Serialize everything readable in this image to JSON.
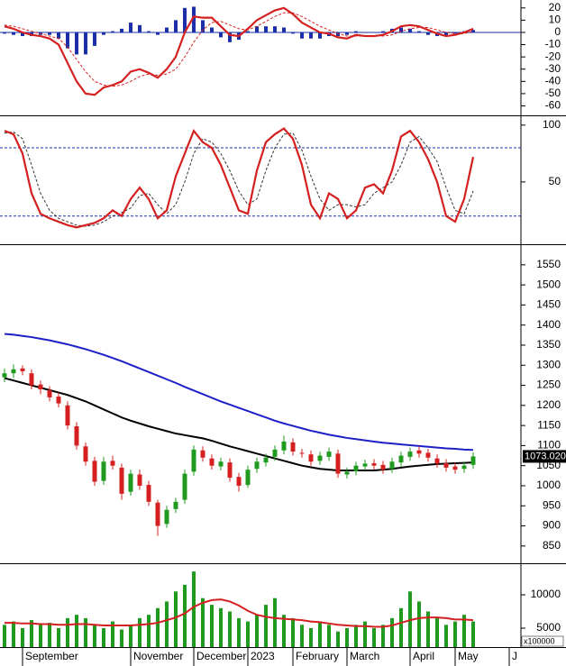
{
  "chart_data": [
    {
      "type": "macd",
      "ylim": [
        -67,
        25
      ],
      "yticks": [
        20,
        10,
        0,
        -10,
        -20,
        -30,
        -40,
        -50,
        -60
      ],
      "macd": {
        "color": "#d42020",
        "values": [
          5,
          3,
          0,
          -2,
          -3,
          -5,
          -10,
          -25,
          -40,
          -50,
          -51,
          -45,
          -43,
          -40,
          -32,
          -30,
          -33,
          -37,
          -30,
          -20,
          0,
          13,
          12,
          12,
          5,
          -2,
          -3,
          3,
          10,
          14,
          18,
          20,
          15,
          8,
          4,
          0,
          -1,
          -4,
          -5,
          -2,
          -3,
          -3,
          -2,
          1,
          5,
          6,
          5,
          2,
          -1,
          -3,
          -2,
          0,
          3
        ]
      },
      "signal": {
        "color": "#d42020",
        "values": [
          6,
          5,
          3,
          1,
          -1,
          -3,
          -5,
          -12,
          -22,
          -32,
          -40,
          -43,
          -44,
          -43,
          -40,
          -36,
          -34,
          -35,
          -34,
          -30,
          -20,
          -8,
          2,
          8,
          9,
          6,
          3,
          2,
          5,
          9,
          13,
          16,
          16,
          13,
          9,
          5,
          2,
          -1,
          -3,
          -3,
          -3,
          -3,
          -3,
          -2,
          1,
          3,
          4,
          4,
          2,
          0,
          -1,
          -1,
          1
        ]
      },
      "histogram": {
        "color": "#1a2fa8",
        "values": [
          -1,
          -2,
          -3,
          -3,
          -2,
          -2,
          -5,
          -13,
          -18,
          -18,
          -11,
          -2,
          1,
          3,
          8,
          6,
          1,
          -2,
          4,
          10,
          20,
          21,
          10,
          4,
          -4,
          -8,
          -6,
          1,
          5,
          5,
          5,
          4,
          -1,
          -5,
          -5,
          -5,
          -3,
          -3,
          -2,
          1,
          0,
          0,
          1,
          3,
          4,
          3,
          1,
          -2,
          -3,
          -3,
          -1,
          1,
          2
        ]
      }
    },
    {
      "type": "stochastic",
      "ylim": [
        -4,
        107
      ],
      "yticks": [
        100,
        50
      ],
      "levels": [
        20,
        80
      ],
      "level_color": "#1a2fa8",
      "k": {
        "color": "#d42020",
        "values": [
          95,
          92,
          75,
          40,
          22,
          18,
          15,
          12,
          10,
          12,
          14,
          18,
          25,
          20,
          35,
          45,
          35,
          18,
          25,
          55,
          75,
          95,
          85,
          80,
          65,
          45,
          25,
          22,
          60,
          85,
          92,
          97,
          88,
          65,
          30,
          18,
          40,
          35,
          18,
          25,
          45,
          48,
          40,
          60,
          90,
          95,
          85,
          70,
          50,
          20,
          15,
          35,
          72
        ]
      },
      "d": {
        "color": "#333333",
        "values": [
          93,
          94,
          88,
          65,
          40,
          25,
          18,
          15,
          12,
          11,
          12,
          15,
          20,
          23,
          27,
          38,
          40,
          30,
          22,
          30,
          50,
          75,
          88,
          85,
          75,
          60,
          42,
          30,
          35,
          60,
          80,
          92,
          93,
          78,
          55,
          35,
          25,
          30,
          30,
          28,
          30,
          40,
          45,
          50,
          65,
          85,
          90,
          80,
          68,
          45,
          25,
          22,
          42
        ]
      }
    },
    {
      "type": "candlestick",
      "ylim": [
        807,
        1599
      ],
      "yticks": [
        1550,
        1500,
        1450,
        1400,
        1350,
        1300,
        1250,
        1200,
        1150,
        1100,
        1050,
        1000,
        950,
        900,
        850
      ],
      "up_color": "#1f9a1f",
      "down_color": "#d42020",
      "open": [
        1270,
        1280,
        1292,
        1280,
        1252,
        1238,
        1222,
        1200,
        1148,
        1098,
        1062,
        1012,
        1062,
        1045,
        985,
        1028,
        1002,
        958,
        905,
        942,
        965,
        1035,
        1088,
        1068,
        1048,
        1058,
        1022,
        1002,
        1042,
        1058,
        1072,
        1088,
        1108,
        1082,
        1078,
        1062,
        1072,
        1080,
        1028,
        1036,
        1048,
        1056,
        1052,
        1042,
        1058,
        1072,
        1088,
        1082,
        1068,
        1056,
        1048,
        1042,
        1052
      ],
      "high": [
        1292,
        1302,
        1300,
        1290,
        1262,
        1248,
        1232,
        1210,
        1158,
        1108,
        1072,
        1072,
        1075,
        1055,
        1040,
        1040,
        1012,
        965,
        950,
        970,
        1040,
        1100,
        1098,
        1078,
        1070,
        1068,
        1032,
        1050,
        1070,
        1080,
        1100,
        1125,
        1118,
        1092,
        1088,
        1085,
        1095,
        1090,
        1045,
        1060,
        1065,
        1066,
        1062,
        1070,
        1085,
        1095,
        1098,
        1092,
        1078,
        1066,
        1058,
        1060,
        1083
      ],
      "low": [
        1258,
        1268,
        1275,
        1240,
        1228,
        1210,
        1195,
        1140,
        1090,
        1050,
        1000,
        1002,
        1040,
        965,
        975,
        990,
        950,
        875,
        895,
        932,
        955,
        1025,
        1060,
        1040,
        1038,
        1010,
        985,
        995,
        1032,
        1048,
        1062,
        1078,
        1075,
        1070,
        1050,
        1052,
        1062,
        1020,
        1018,
        1026,
        1038,
        1040,
        1030,
        1032,
        1048,
        1062,
        1070,
        1060,
        1045,
        1035,
        1030,
        1032,
        1042
      ],
      "close": [
        1280,
        1290,
        1285,
        1250,
        1240,
        1220,
        1205,
        1150,
        1100,
        1060,
        1010,
        1060,
        1050,
        980,
        1030,
        1000,
        960,
        900,
        940,
        960,
        1030,
        1090,
        1070,
        1050,
        1060,
        1020,
        1000,
        1040,
        1060,
        1070,
        1090,
        1110,
        1085,
        1080,
        1060,
        1075,
        1085,
        1030,
        1035,
        1050,
        1055,
        1050,
        1040,
        1060,
        1075,
        1085,
        1080,
        1070,
        1055,
        1045,
        1040,
        1050,
        1073
      ],
      "moving_averages": [
        {
          "color": "#1f1fc8",
          "values": [
            1378,
            1376,
            1373,
            1370,
            1366,
            1362,
            1357,
            1352,
            1346,
            1340,
            1333,
            1326,
            1318,
            1310,
            1301,
            1292,
            1283,
            1274,
            1265,
            1256,
            1246,
            1237,
            1228,
            1219,
            1210,
            1202,
            1194,
            1186,
            1178,
            1170,
            1162,
            1155,
            1149,
            1143,
            1137,
            1132,
            1127,
            1123,
            1119,
            1116,
            1113,
            1110,
            1107,
            1105,
            1103,
            1101,
            1099,
            1097,
            1095,
            1093,
            1092,
            1090,
            1089
          ]
        },
        {
          "color": "#000000",
          "values": [
            1268,
            1262,
            1256,
            1250,
            1244,
            1238,
            1232,
            1226,
            1218,
            1210,
            1200,
            1190,
            1180,
            1170,
            1162,
            1155,
            1148,
            1142,
            1136,
            1130,
            1126,
            1122,
            1118,
            1112,
            1105,
            1098,
            1092,
            1086,
            1080,
            1074,
            1068,
            1062,
            1056,
            1050,
            1046,
            1042,
            1040,
            1038,
            1038,
            1038,
            1038,
            1038,
            1040,
            1042,
            1045,
            1048,
            1050,
            1052,
            1054,
            1055,
            1056,
            1057,
            1058
          ]
        }
      ],
      "last_price": {
        "value": 1073.02,
        "label": "1073.020"
      }
    },
    {
      "type": "bar",
      "ylim": [
        2160,
        14460
      ],
      "yticks": [
        10000,
        5000
      ],
      "color": "#1f9a1f",
      "unit_label": "x100000",
      "categories": [
        null,
        null,
        "September",
        null,
        null,
        null,
        null,
        null,
        null,
        null,
        null,
        null,
        null,
        null,
        "November",
        null,
        null,
        null,
        null,
        null,
        null,
        "December",
        null,
        null,
        null,
        null,
        null,
        "2023",
        null,
        null,
        null,
        null,
        "February",
        null,
        null,
        null,
        null,
        null,
        "March",
        null,
        null,
        null,
        null,
        null,
        null,
        "April",
        null,
        null,
        null,
        null,
        "May",
        null,
        null,
        null,
        null,
        null,
        "J"
      ],
      "values": [
        5500,
        6000,
        5000,
        6200,
        5500,
        5800,
        5000,
        6500,
        7000,
        6500,
        5500,
        5000,
        6000,
        4800,
        5500,
        6500,
        7000,
        8000,
        9000,
        10500,
        11500,
        13500,
        9500,
        8500,
        8000,
        7500,
        6500,
        6000,
        7000,
        8500,
        9500,
        7000,
        6500,
        5500,
        5000,
        6000,
        5500,
        4500,
        5000,
        5500,
        6000,
        5000,
        5500,
        6500,
        8000,
        10500,
        9000,
        7500,
        6500,
        5500,
        6000,
        7000,
        6000,
        null,
        null,
        null,
        null
      ],
      "moving_average": {
        "color": "#d42020",
        "values": [
          5800,
          5800,
          5700,
          5700,
          5600,
          5600,
          5500,
          5500,
          5600,
          5600,
          5500,
          5400,
          5400,
          5400,
          5400,
          5500,
          5600,
          5800,
          6200,
          6600,
          7200,
          8200,
          8800,
          9200,
          9300,
          9000,
          8400,
          7600,
          7000,
          6700,
          6500,
          6400,
          6300,
          6200,
          6000,
          5900,
          5700,
          5500,
          5400,
          5300,
          5300,
          5200,
          5200,
          5400,
          5800,
          6200,
          6500,
          6600,
          6600,
          6500,
          6300,
          6300,
          6200,
          null,
          null,
          null,
          null
        ]
      }
    }
  ]
}
